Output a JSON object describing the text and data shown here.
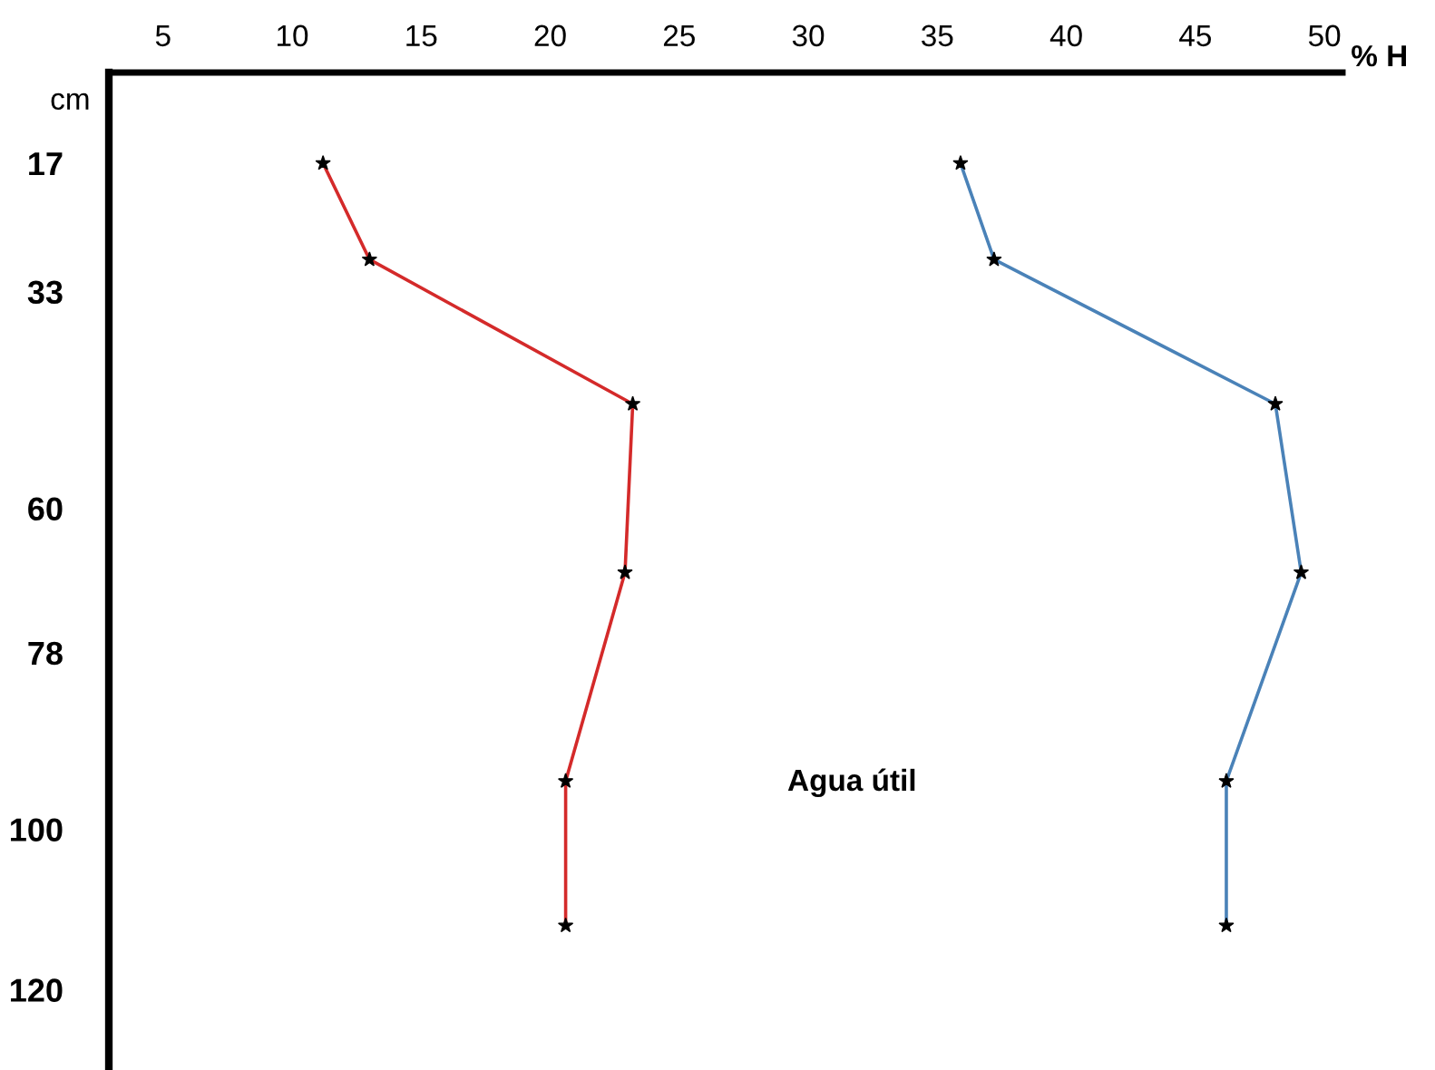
{
  "chart_data": {
    "type": "line",
    "xlabel": "% H",
    "ylabel": "cm",
    "xlim": [
      2.9,
      50.7
    ],
    "xticks": [
      5,
      10,
      15,
      20,
      25,
      30,
      35,
      40,
      45,
      50
    ],
    "ylim": [
      130,
      5.7
    ],
    "yticks": [
      17,
      33,
      60,
      78,
      100,
      120
    ],
    "series": [
      {
        "color": "#d42a2a",
        "x": [
          11.2,
          13.0,
          23.2,
          22.9,
          20.6,
          20.6
        ],
        "values": [
          17,
          29,
          47,
          68,
          94,
          112
        ]
      },
      {
        "color": "#4a82b8",
        "x": [
          35.9,
          37.2,
          48.1,
          49.1,
          46.2,
          46.2
        ],
        "values": [
          17,
          29,
          47,
          68,
          94,
          112
        ]
      }
    ],
    "marker": "star",
    "grid": false,
    "legend": false,
    "annotations": [
      "Agua útil"
    ]
  }
}
